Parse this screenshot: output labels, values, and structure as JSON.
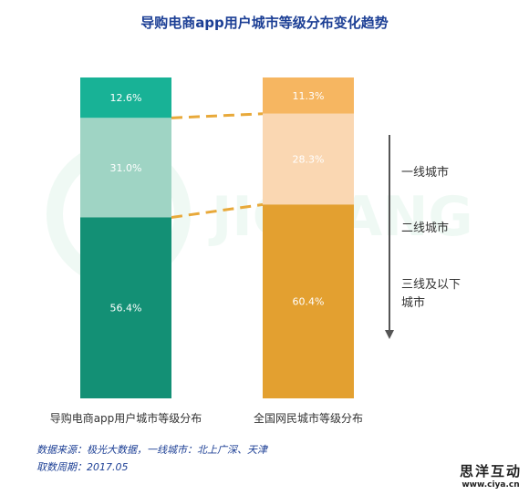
{
  "title": "导购电商app用户城市等级分布变化趋势",
  "chart_data": {
    "type": "bar",
    "stacked": true,
    "title": "导购电商app用户城市等级分布变化趋势",
    "categories": [
      "导购电商app用户城市等级分布",
      "全国网民城市等级分布"
    ],
    "series": [
      {
        "name": "一线城市",
        "values": [
          12.6,
          11.3
        ],
        "labels": [
          "12.6%",
          "11.3%"
        ]
      },
      {
        "name": "二线城市",
        "values": [
          31.0,
          28.3
        ],
        "labels": [
          "31.0%",
          "28.3%"
        ]
      },
      {
        "name": "三线及以下城市",
        "values": [
          56.4,
          60.4
        ],
        "labels": [
          "56.4%",
          "60.4%"
        ]
      }
    ],
    "colors": [
      [
        "#18b296",
        "#9fd4c4",
        "#139075"
      ],
      [
        "#f6b661",
        "#fad7b2",
        "#e3a030"
      ]
    ],
    "connector_color": "#e8a93a",
    "arrow_color": "#555555",
    "legend_position": "right",
    "watermark": "JIGUANG 极光 数据服务"
  },
  "footnote": {
    "source": "数据来源：极光大数据，一线城市：北上广深、天津",
    "period": "取数周期：2017.05"
  },
  "logo": {
    "name": "思洋互动",
    "url": "www.ciya.cn"
  }
}
